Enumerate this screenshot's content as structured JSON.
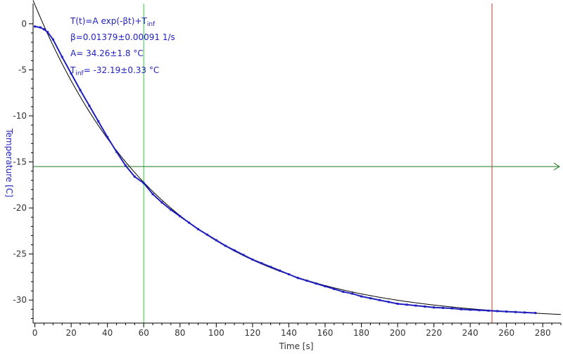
{
  "chart_data": {
    "type": "scatter",
    "xlabel": "Time [s]",
    "ylabel": "Temperature [C]",
    "xlim": [
      -1,
      290
    ],
    "ylim": [
      -32.5,
      2.2
    ],
    "x_ticks": [
      0,
      20,
      40,
      60,
      80,
      100,
      120,
      140,
      160,
      180,
      200,
      220,
      240,
      260,
      280
    ],
    "y_ticks": [
      0,
      -5,
      -10,
      -15,
      -20,
      -25,
      -30
    ],
    "grid": false,
    "fit": {
      "equation_base": "T(t)=A exp(-βt)+T",
      "equation_sub": "inf",
      "beta_text": "β=0.01379±0.00091 1/s",
      "a_text": "A= 34.26±1.8 °C",
      "tinf_symbol": "T",
      "tinf_sub": "inf",
      "tinf_value": "= -32.19±0.33 °C",
      "A": 34.26,
      "beta": 0.01379,
      "T_inf": -32.19,
      "x_range": [
        -1,
        290
      ]
    },
    "series": [
      {
        "type": "measured",
        "x": [
          0,
          3,
          5,
          7,
          10,
          15,
          20,
          25,
          30,
          35,
          40,
          45,
          50,
          55,
          60,
          65,
          70,
          75,
          80,
          85,
          90,
          95,
          100,
          105,
          110,
          115,
          120,
          125,
          130,
          135,
          140,
          145,
          150,
          155,
          160,
          165,
          170,
          175,
          180,
          185,
          190,
          195,
          200,
          205,
          210,
          215,
          220,
          225,
          230,
          235,
          240,
          245,
          250,
          255,
          260,
          265,
          270,
          276
        ],
        "y": [
          -0.3,
          -0.4,
          -0.6,
          -0.9,
          -1.7,
          -3.6,
          -5.4,
          -7.2,
          -8.9,
          -10.6,
          -12.3,
          -13.9,
          -15.4,
          -16.6,
          -17.3,
          -18.5,
          -19.4,
          -20.2,
          -20.9,
          -21.6,
          -22.3,
          -22.9,
          -23.5,
          -24.1,
          -24.6,
          -25.1,
          -25.6,
          -26.0,
          -26.4,
          -26.8,
          -27.2,
          -27.6,
          -27.9,
          -28.2,
          -28.5,
          -28.8,
          -29.1,
          -29.3,
          -29.6,
          -29.8,
          -30.0,
          -30.2,
          -30.4,
          -30.5,
          -30.6,
          -30.7,
          -30.8,
          -30.85,
          -30.9,
          -31.0,
          -31.05,
          -31.1,
          -31.15,
          -31.2,
          -31.25,
          -31.3,
          -31.35,
          -31.4
        ]
      }
    ],
    "vertical_markers": [
      {
        "x": 60,
        "color": "#2ecc40"
      },
      {
        "x": 252,
        "color": "#c0392b"
      }
    ],
    "horizontal_markers": [
      {
        "y": -15.5,
        "color": "#1e7b1e"
      }
    ],
    "colors": {
      "data": "#1f1fbf",
      "fit": "#000000",
      "axis": "#000000",
      "ylabel": "#1f1fbf"
    }
  }
}
